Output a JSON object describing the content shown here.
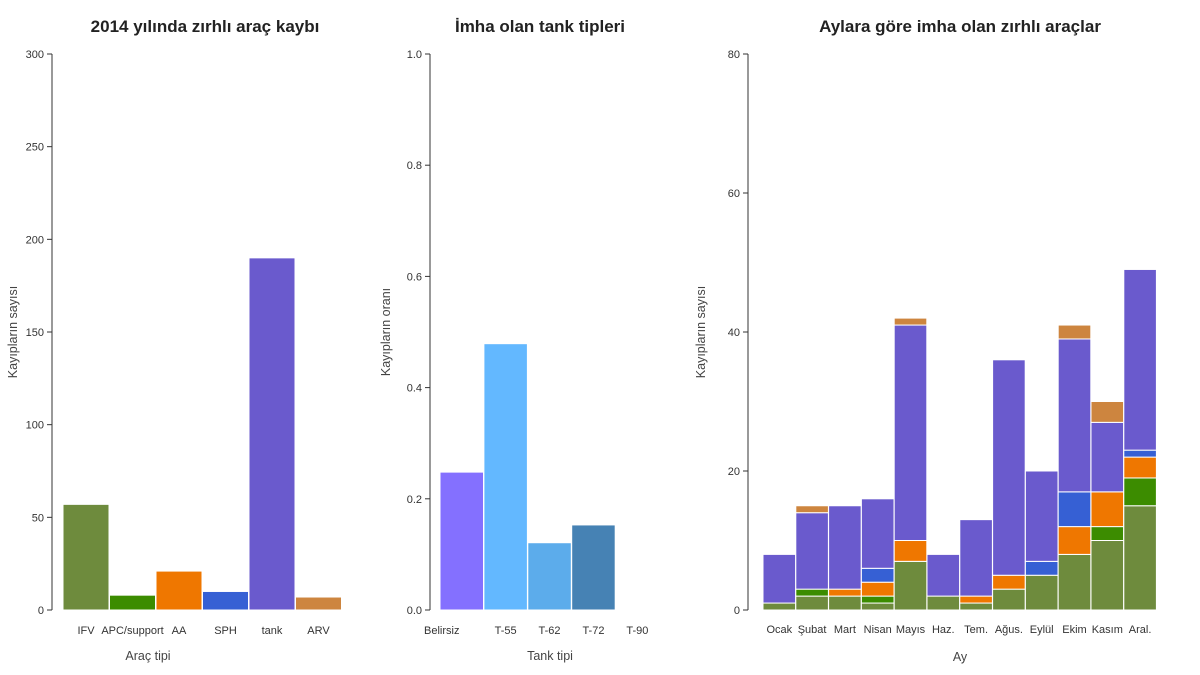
{
  "chart_data": [
    {
      "type": "bar",
      "title": "2014 yılında zırhlı araç kaybı",
      "xlabel": "Araç tipi",
      "ylabel": "Kayıpların sayısı",
      "ylim": [
        0,
        300
      ],
      "yticks": [
        0,
        50,
        100,
        150,
        200,
        250,
        300
      ],
      "categories": [
        "IFV",
        "APC/support",
        "AA",
        "SPH",
        "tank",
        "ARV"
      ],
      "values": [
        57,
        8,
        21,
        10,
        190,
        7
      ],
      "colors": [
        "#6e8b3d",
        "#3c8c00",
        "#ef7700",
        "#3660d4",
        "#6a5acd",
        "#cd853f"
      ]
    },
    {
      "type": "bar",
      "title": "İmha olan tank tipleri",
      "xlabel": "Tank tipi",
      "ylabel": "Kayıpların oranı",
      "ylim": [
        0,
        1.0
      ],
      "yticks": [
        "0.0",
        "0.2",
        "0.4",
        "0.6",
        "0.8",
        "1.0"
      ],
      "categories": [
        "Belirsiz",
        "T-55",
        "T-62",
        "T-72",
        "T-90"
      ],
      "values": [
        0.248,
        0.479,
        0.121,
        0.153,
        0
      ],
      "colors": [
        "#8470ff",
        "#63b8ff",
        "#5caceb",
        "#4682b4",
        "#4682b4"
      ]
    },
    {
      "type": "bar",
      "stacked": true,
      "title": "Aylara göre imha olan zırhlı araçlar",
      "xlabel": "Ay",
      "ylabel": "Kayıpların sayısı",
      "ylim": [
        0,
        80
      ],
      "yticks": [
        0,
        20,
        40,
        60,
        80
      ],
      "categories": [
        "Ocak",
        "Şubat",
        "Mart",
        "Nisan",
        "Mayıs",
        "Haz.",
        "Tem.",
        "Ağus.",
        "Eylül",
        "Ekim",
        "Kasım",
        "Aral."
      ],
      "series": [
        {
          "name": "IFV",
          "color": "#6e8b3d",
          "values": [
            1,
            2,
            2,
            1,
            7,
            2,
            1,
            3,
            5,
            8,
            10,
            15
          ]
        },
        {
          "name": "APC/support",
          "color": "#3c8c00",
          "values": [
            0,
            1,
            0,
            1,
            0,
            0,
            0,
            0,
            0,
            0,
            2,
            4
          ]
        },
        {
          "name": "AA",
          "color": "#ef7700",
          "values": [
            0,
            0,
            1,
            2,
            3,
            0,
            1,
            2,
            0,
            4,
            5,
            3
          ]
        },
        {
          "name": "SPH",
          "color": "#3660d4",
          "values": [
            0,
            0,
            0,
            2,
            0,
            0,
            0,
            0,
            2,
            5,
            0,
            1
          ]
        },
        {
          "name": "tank",
          "color": "#6a5acd",
          "values": [
            7,
            11,
            12,
            10,
            31,
            6,
            11,
            31,
            13,
            22,
            10,
            26
          ]
        },
        {
          "name": "ARV",
          "color": "#cd853f",
          "values": [
            0,
            1,
            0,
            0,
            1,
            0,
            0,
            0,
            0,
            2,
            3,
            0
          ]
        }
      ]
    }
  ]
}
